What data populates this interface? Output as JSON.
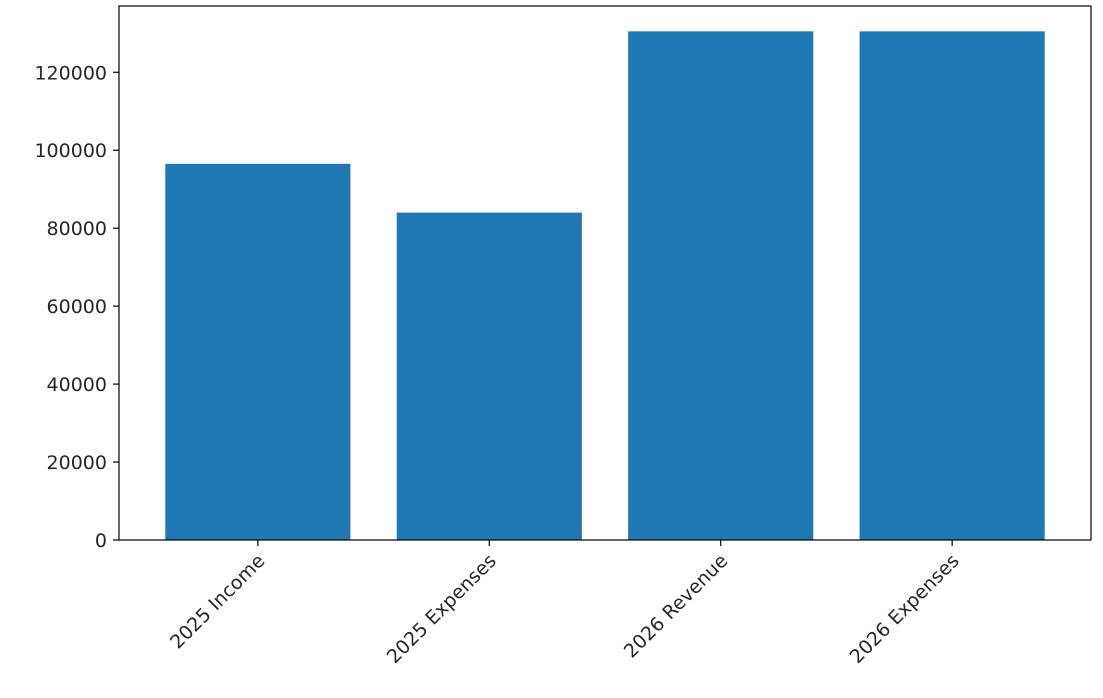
{
  "chart_data": {
    "type": "bar",
    "categories": [
      "2025 Income",
      "2025 Expenses",
      "2026 Revenue",
      "2026 Expenses"
    ],
    "values": [
      96500,
      84000,
      130500,
      130500
    ],
    "title": "",
    "xlabel": "",
    "ylabel": "",
    "ylim": [
      0,
      137000
    ],
    "yticks": [
      0,
      20000,
      40000,
      60000,
      80000,
      100000,
      120000
    ],
    "ytick_labels": [
      "0",
      "20000",
      "40000",
      "60000",
      "80000",
      "100000",
      "120000"
    ],
    "bar_color": "#1f77b4",
    "grid": false,
    "legend": "none"
  }
}
